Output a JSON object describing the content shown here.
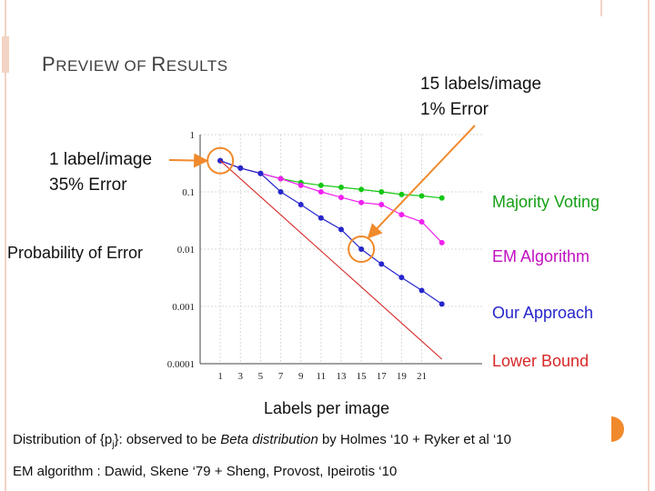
{
  "slide": {
    "title_first_cap": "P",
    "title_first_rest": "REVIEW OF ",
    "title_second_cap": "R",
    "title_second_rest": "ESULTS",
    "caption1_pre": "Distribution of {p",
    "caption1_sub": "j",
    "caption1_mid": "}: observed to be ",
    "caption1_italic": "Beta distribution",
    "caption1_post": " by Holmes ‘10 + Ryker et al ‘10",
    "caption2": "EM algorithm : Dawid, Skene ‘79 + Sheng, Provost, Ipeirotis ‘10"
  },
  "colors": {
    "frame": "#f3d3c4",
    "orange": "#f08a2c",
    "majority": "#16c716",
    "em": "#f020f0",
    "ours": "#2626cc",
    "lower_bound": "#d82828"
  },
  "chart_data": {
    "type": "line",
    "xlabel": "Labels per image",
    "ylabel": "Probability of Error",
    "yscale": "log",
    "xlim": [
      -1,
      27
    ],
    "ylim": [
      0.0001,
      1
    ],
    "x_ticks": [
      "1",
      "3",
      "5",
      "7",
      "9",
      "11",
      "13",
      "15",
      "17",
      "19",
      "21"
    ],
    "y_ticks": [
      {
        "value": 1,
        "label": "1"
      },
      {
        "value": 0.1,
        "label": "0.1"
      },
      {
        "value": 0.01,
        "label": "0.01"
      },
      {
        "value": 0.001,
        "label": "0.001"
      },
      {
        "value": 0.0001,
        "label": "0.0001"
      }
    ],
    "grid": true,
    "series": [
      {
        "name": "Majority Voting",
        "color_key": "majority",
        "marker": true,
        "x": [
          1,
          3,
          5,
          7,
          9,
          11,
          13,
          15,
          17,
          19,
          21,
          23
        ],
        "y": [
          0.35,
          0.26,
          0.21,
          0.17,
          0.145,
          0.13,
          0.12,
          0.11,
          0.1,
          0.09,
          0.085,
          0.078
        ]
      },
      {
        "name": "EM Algorithm",
        "color_key": "em",
        "marker": true,
        "x": [
          1,
          3,
          5,
          7,
          9,
          11,
          13,
          15,
          17,
          19,
          21,
          23
        ],
        "y": [
          0.35,
          0.26,
          0.21,
          0.17,
          0.13,
          0.1,
          0.08,
          0.065,
          0.06,
          0.04,
          0.03,
          0.013
        ]
      },
      {
        "name": "Our Approach",
        "color_key": "ours",
        "marker": true,
        "x": [
          1,
          3,
          5,
          7,
          9,
          11,
          13,
          15,
          17,
          19,
          21,
          23
        ],
        "y": [
          0.35,
          0.26,
          0.21,
          0.1,
          0.06,
          0.035,
          0.022,
          0.01,
          0.0055,
          0.0032,
          0.0019,
          0.0011
        ]
      },
      {
        "name": "Lower Bound",
        "color_key": "lower_bound",
        "marker": false,
        "x": [
          1,
          23
        ],
        "y": [
          0.35,
          0.00012
        ]
      }
    ],
    "annotations": [
      {
        "line1": "1 label/image",
        "line2": "35% Error",
        "x": 1,
        "y": 0.35
      },
      {
        "line1": "15 labels/image",
        "line2": "1% Error",
        "x": 15,
        "y": 0.01
      }
    ]
  }
}
